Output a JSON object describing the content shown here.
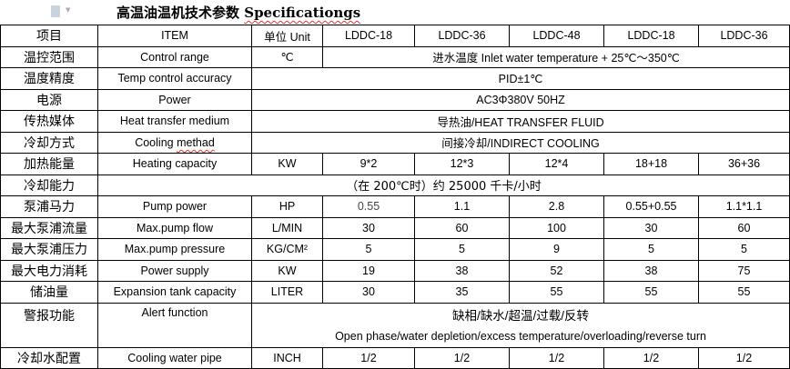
{
  "title": {
    "cn": "高温油温机技术参数 ",
    "en": "Specificationgs"
  },
  "icons": {
    "document": "document-icon",
    "caret": "chevron-down-icon"
  },
  "header": {
    "cn": "项目",
    "en": "ITEM",
    "unit": "单位 Unit",
    "models": [
      "LDDC-18",
      "LDDC-36",
      "LDDC-48",
      "LDDC-18",
      "LDDC-36"
    ]
  },
  "rows": {
    "control_range": {
      "cn": "温控范围",
      "en": "Control range",
      "unit": "℃",
      "value": "进水温度 Inlet water temperature + 25℃～350℃"
    },
    "accuracy": {
      "cn": "温度精度",
      "en": "Temp control accuracy",
      "value": "PID±1℃"
    },
    "power": {
      "cn": "电源",
      "en": "Power",
      "value": "AC3Φ380V 50HZ"
    },
    "medium": {
      "cn": "传热媒体",
      "en": "Heat transfer medium",
      "value": "导热油/HEAT TRANSFER FLUID"
    },
    "cooling_method": {
      "cn": "冷却方式",
      "en_a": "Cooling ",
      "en_b": "methad",
      "value": "间接冷却/INDIRECT COOLING"
    },
    "heating": {
      "cn": "加热能量",
      "en": "Heating capacity",
      "unit": "KW",
      "values": [
        "9*2",
        "12*3",
        "12*4",
        "18+18",
        "36+36"
      ]
    },
    "cooling_capacity": {
      "cn": "冷却能力",
      "value": "（在 200℃时）约 25000 千卡/小时"
    },
    "pump_power": {
      "cn": "泵浦马力",
      "en": "Pump power",
      "unit": "HP",
      "values": [
        "0.55",
        "1.1",
        "2.8",
        "0.55+0.55",
        "1.1*1.1"
      ]
    },
    "pump_flow": {
      "cn": "最大泵浦流量",
      "en": "Max.pump flow",
      "unit": "L/MIN",
      "values": [
        "30",
        "60",
        "100",
        "30",
        "60"
      ]
    },
    "pump_pressure": {
      "cn": "最大泵浦压力",
      "en": "Max.pump pressure",
      "unit": "KG/CM²",
      "values": [
        "5",
        "5",
        "9",
        "5",
        "5"
      ]
    },
    "power_supply": {
      "cn": "最大电力消耗",
      "en": "Power supply",
      "unit": "KW",
      "values": [
        "19",
        "38",
        "52",
        "38",
        "75"
      ]
    },
    "tank": {
      "cn": "储油量",
      "en": "Expansion tank capacity",
      "unit": "LITER",
      "values": [
        "30",
        "35",
        "55",
        "55",
        "55"
      ]
    },
    "alert": {
      "cn": "警报功能",
      "en": "Alert function",
      "value_cn": "缺相/缺水/超温/过载/反转",
      "value_en": "Open phase/water depletion/excess temperature/overloading/reverse turn"
    },
    "cooling_pipe": {
      "cn": "冷却水配置",
      "en": "Cooling water pipe",
      "unit": "INCH",
      "values": [
        "1/2",
        "1/2",
        "1/2",
        "1/2",
        "1/2"
      ]
    }
  }
}
